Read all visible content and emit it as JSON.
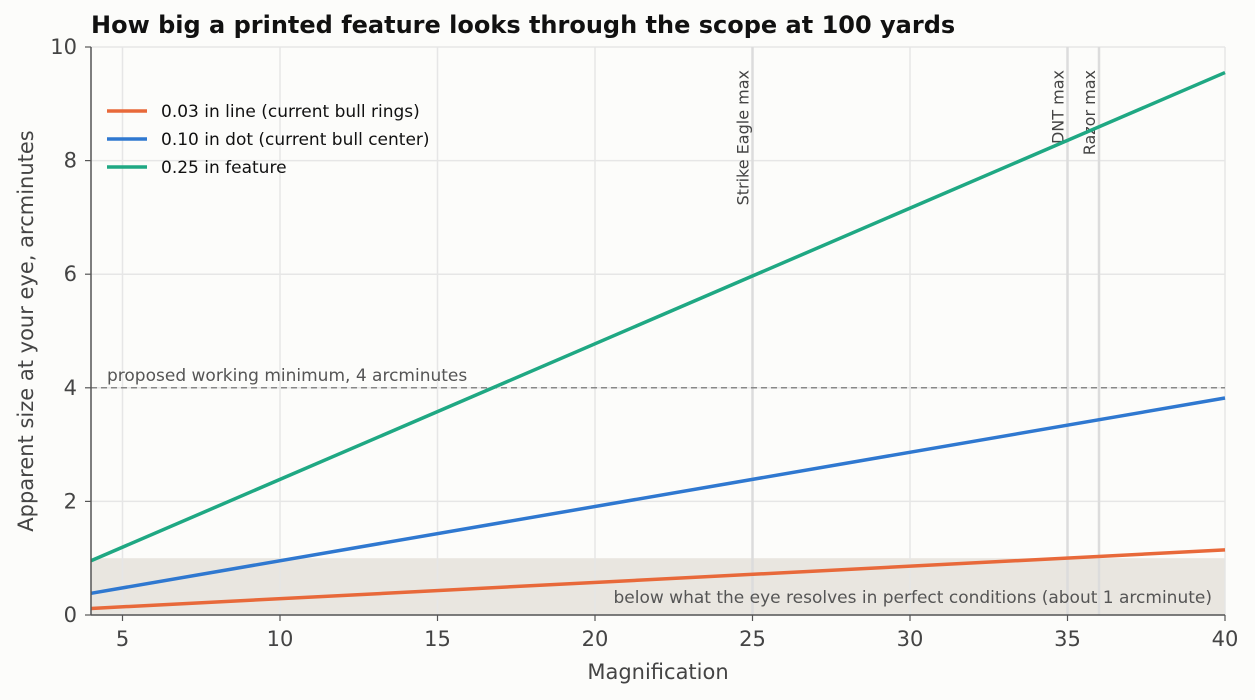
{
  "chart_data": {
    "type": "line",
    "title": "How big a printed feature looks through the scope at 100 yards",
    "xlabel": "Magnification",
    "ylabel": "Apparent size at your eye, arcminutes",
    "xlim": [
      4,
      40
    ],
    "ylim": [
      0,
      10
    ],
    "xticks": [
      5,
      10,
      15,
      20,
      25,
      30,
      35,
      40
    ],
    "yticks": [
      0,
      2,
      4,
      6,
      8,
      10
    ],
    "grid": true,
    "legend_position": "upper-left",
    "series": [
      {
        "name": "0.03 in line (current bull rings)",
        "color": "#e8693a",
        "x": [
          4,
          40
        ],
        "y": [
          0.115,
          1.146
        ]
      },
      {
        "name": "0.10 in dot (current bull center)",
        "color": "#2f78d0",
        "x": [
          4,
          40
        ],
        "y": [
          0.382,
          3.82
        ]
      },
      {
        "name": "0.25 in feature",
        "color": "#1fa883",
        "x": [
          4,
          40
        ],
        "y": [
          0.955,
          9.55
        ]
      }
    ],
    "reference_line": {
      "y": 4,
      "label": "proposed working minimum, 4 arcminutes",
      "color": "#888888"
    },
    "shaded_band": {
      "y_from": 0,
      "y_to": 1,
      "label": "below what the eye resolves in perfect conditions (about 1 arcminute)",
      "color": "#e9e6e0"
    },
    "vertical_markers": [
      {
        "x": 25,
        "label": "Strike Eagle max"
      },
      {
        "x": 35,
        "label": "DNT max"
      },
      {
        "x": 36,
        "label": "Razor max"
      }
    ]
  }
}
